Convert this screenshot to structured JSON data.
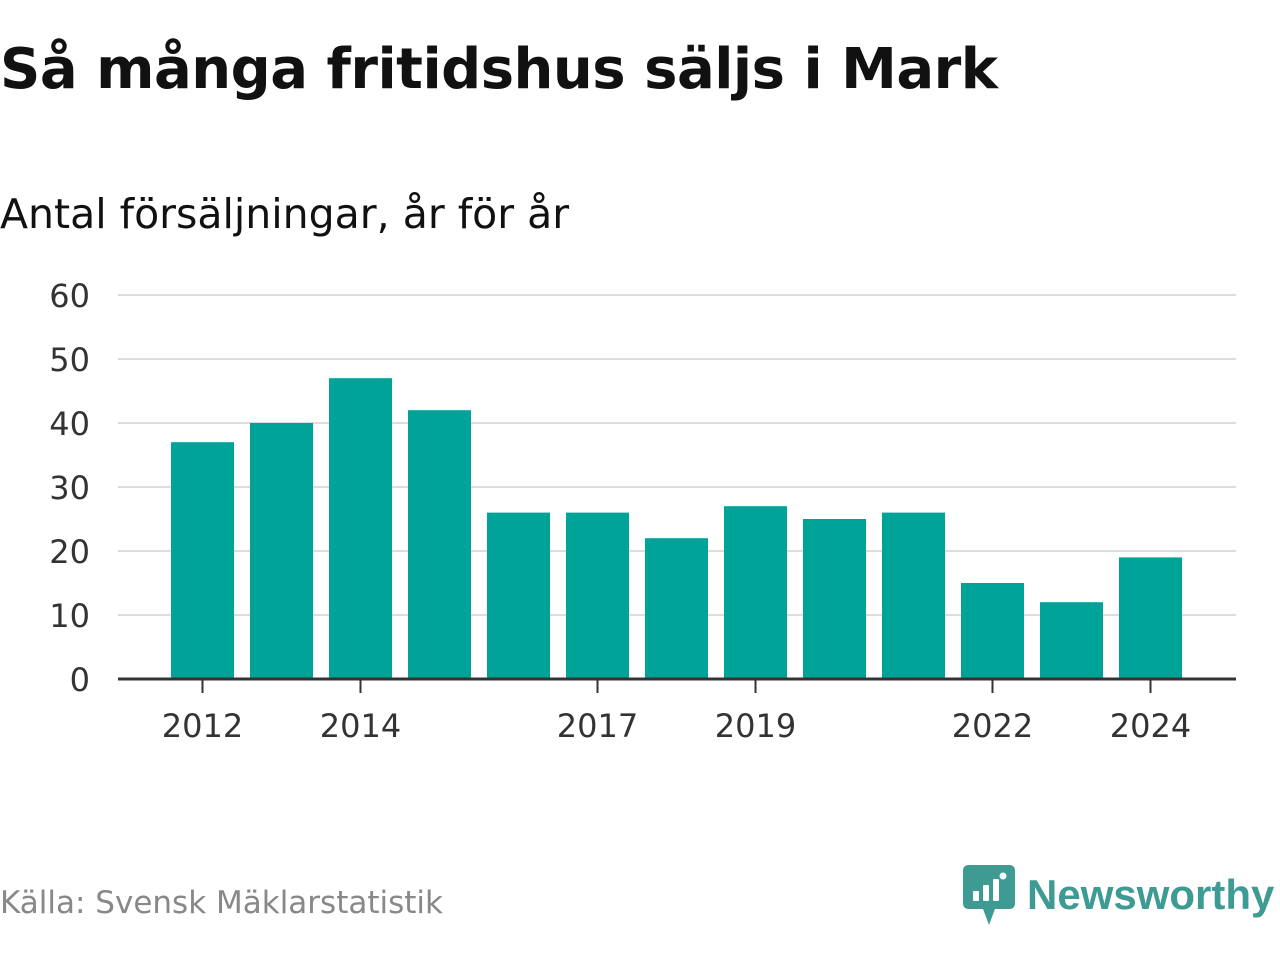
{
  "title": "Så många fritidshus säljs i Mark",
  "subtitle": "Antal försäljningar, år för år",
  "source": "Källa: Svensk Mäklarstatistik",
  "brand": {
    "name": "Newsworthy",
    "icon": "newsworthy-logo-icon",
    "color": "#3d9b94"
  },
  "colors": {
    "bar": "#00a398",
    "grid": "#dddddd",
    "axis": "#333333",
    "text": "#111111",
    "source": "#888888"
  },
  "chart_data": {
    "type": "bar",
    "categories": [
      "2012",
      "2013",
      "2014",
      "2015",
      "2016",
      "2017",
      "2018",
      "2019",
      "2020",
      "2021",
      "2022",
      "2023",
      "2024"
    ],
    "tick_labels": [
      "2012",
      "2014",
      "2017",
      "2019",
      "2022",
      "2024"
    ],
    "values": [
      37,
      40,
      47,
      42,
      26,
      26,
      22,
      27,
      25,
      26,
      15,
      12,
      19
    ],
    "ylim": [
      0,
      60
    ],
    "yticks": [
      0,
      10,
      20,
      30,
      40,
      50,
      60
    ],
    "xlabel": "",
    "ylabel": "",
    "grid": true,
    "legend": false
  }
}
